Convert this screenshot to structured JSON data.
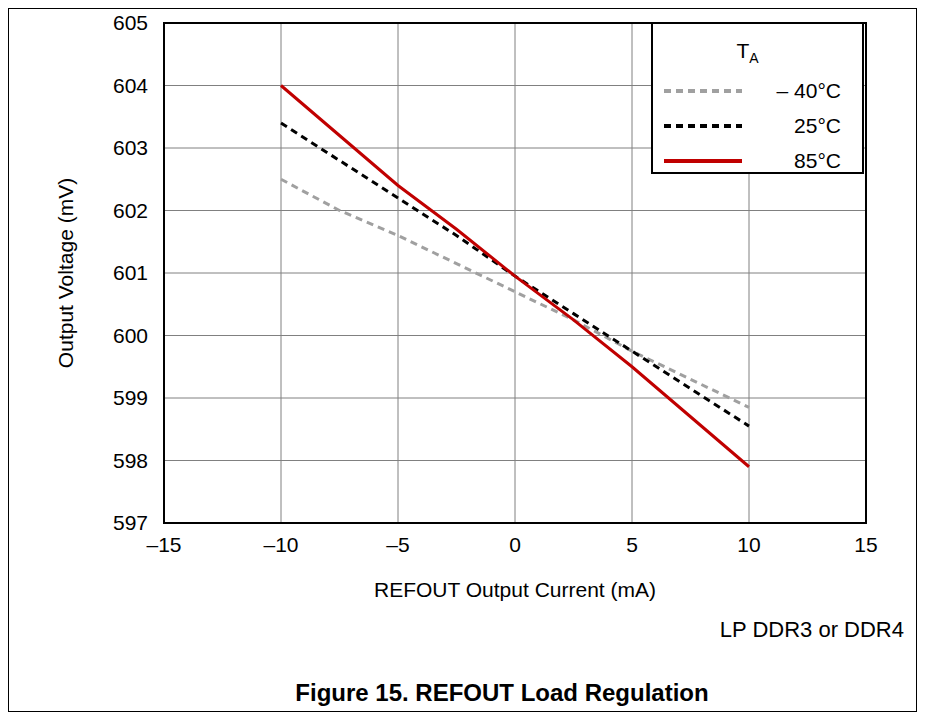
{
  "chart_data": {
    "type": "line",
    "title": "Figure 15. REFOUT Load Regulation",
    "x_label": "REFOUT Output Current (mA)",
    "y_label": "Output Voltage (mV)",
    "annotations": [
      "LP DDR3 or DDR4"
    ],
    "legend_title": "TA",
    "x": [
      -10,
      -7.5,
      -5,
      -2.5,
      0,
      2.5,
      5,
      7.5,
      10
    ],
    "series": [
      {
        "name": "– 40°C",
        "color": "#a0a0a0",
        "line_style": "dashed",
        "values": [
          602.5,
          602.0,
          601.6,
          601.15,
          600.7,
          600.25,
          599.75,
          599.3,
          598.85
        ]
      },
      {
        "name": "25°C",
        "color": "#000000",
        "line_style": "dashed",
        "values": [
          603.4,
          602.8,
          602.2,
          601.6,
          600.95,
          600.35,
          599.75,
          599.15,
          598.55
        ]
      },
      {
        "name": "85°C",
        "color": "#c00000",
        "line_style": "solid",
        "values": [
          604.0,
          603.2,
          602.4,
          601.7,
          600.95,
          600.25,
          599.5,
          598.7,
          597.9
        ]
      }
    ],
    "xlim": [
      -15,
      15
    ],
    "xticks": [
      {
        "value": -15,
        "label": "–15"
      },
      {
        "value": -10,
        "label": "–10"
      },
      {
        "value": -5,
        "label": "–5"
      },
      0,
      5,
      10,
      15
    ],
    "ylim": [
      597,
      605
    ],
    "yticks": [
      597,
      598,
      599,
      600,
      601,
      602,
      603,
      604,
      605
    ],
    "grid": true,
    "legend": "upper right"
  }
}
